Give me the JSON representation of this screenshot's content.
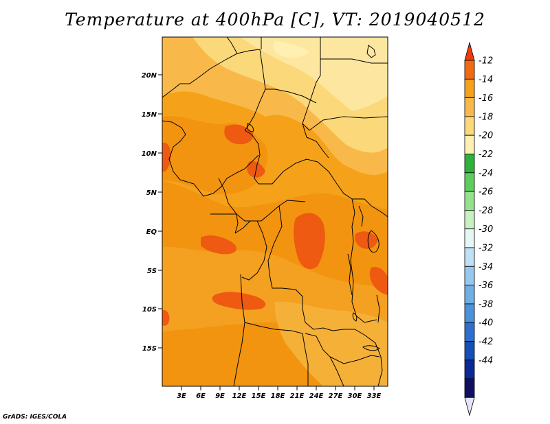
{
  "title": "Temperature at 400hPa [C], VT: 2019040512",
  "credit": "GrADS: IGES/COLA",
  "lat_ticks": [
    "20N",
    "15N",
    "10N",
    "5N",
    "EQ",
    "5S",
    "10S",
    "15S"
  ],
  "lon_ticks": [
    "3E",
    "6E",
    "9E",
    "12E",
    "15E",
    "18E",
    "21E",
    "24E",
    "27E",
    "30E",
    "33E"
  ],
  "colorbar": {
    "labels": [
      "-12",
      "-14",
      "-16",
      "-18",
      "-20",
      "-22",
      "-24",
      "-26",
      "-28",
      "-30",
      "-32",
      "-34",
      "-36",
      "-38",
      "-40",
      "-42",
      "-44"
    ],
    "colors": [
      "#ee3c0a",
      "#f26a10",
      "#f5a21a",
      "#f8b94a",
      "#fbd97a",
      "#fff0b2",
      "#2db23a",
      "#5ccf5a",
      "#93e28c",
      "#c8f0c3",
      "#e6f8f5",
      "#bfe0f5",
      "#96c8f0",
      "#70aee6",
      "#4a92dc",
      "#2d6fcf",
      "#1450b8",
      "#0a2896",
      "#111060",
      "#e6e4f8"
    ]
  },
  "chart_data": {
    "type": "heatmap",
    "title": "Temperature at 400hPa [C], VT: 2019040512",
    "variable": "Temperature at 400hPa",
    "units": "C",
    "valid_time": "2019040512",
    "lon_range": [
      0,
      35
    ],
    "lat_range": [
      -20,
      25
    ],
    "contour_levels": [
      -44,
      -42,
      -40,
      -38,
      -36,
      -34,
      -32,
      -30,
      -28,
      -26,
      -24,
      -22,
      -20,
      -18,
      -16,
      -14,
      -12
    ],
    "dominant_range": "-20 to -12"
  }
}
